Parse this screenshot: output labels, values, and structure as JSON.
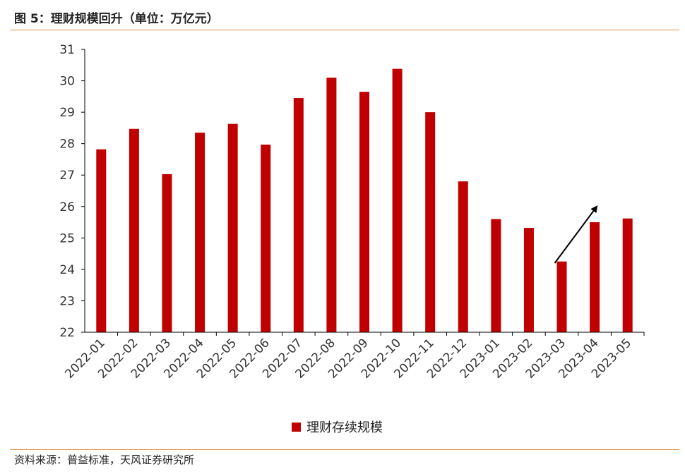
{
  "header": {
    "title": "图 5：理财规模回升（单位：万亿元）"
  },
  "footer": {
    "source": "资料来源：普益标准，天风证券研究所"
  },
  "colors": {
    "bar": "#c00000",
    "rule": "#e08a3c",
    "arrow": "#000000"
  },
  "chart_data": {
    "type": "bar",
    "title": "",
    "xlabel": "",
    "ylabel": "",
    "ylim": [
      22,
      31
    ],
    "yticks": [
      22,
      23,
      24,
      25,
      26,
      27,
      28,
      29,
      30,
      31
    ],
    "categories": [
      "2022-01",
      "2022-02",
      "2022-03",
      "2022-04",
      "2022-05",
      "2022-06",
      "2022-07",
      "2022-08",
      "2022-09",
      "2022-10",
      "2022-11",
      "2022-12",
      "2023-01",
      "2023-02",
      "2023-03",
      "2023-04",
      "2023-05"
    ],
    "series": [
      {
        "name": "理财存续规模",
        "values": [
          27.82,
          28.47,
          27.03,
          28.35,
          28.63,
          27.97,
          29.45,
          30.1,
          29.65,
          30.38,
          29.0,
          26.8,
          25.6,
          25.32,
          24.25,
          25.5,
          25.62
        ]
      }
    ],
    "grid": false,
    "legend_position": "bottom-center",
    "annotation": "upward arrow from 2023-03 toward 2023-04"
  }
}
